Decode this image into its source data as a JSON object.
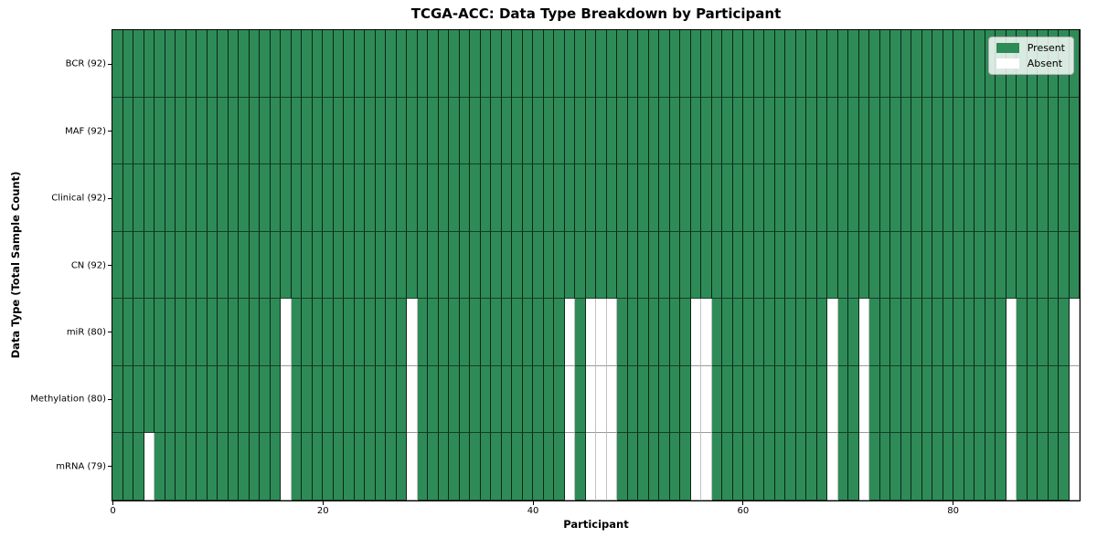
{
  "chart_data": {
    "type": "heatmap",
    "title": "TCGA-ACC: Data Type Breakdown by Participant",
    "xlabel": "Participant",
    "ylabel": "Data Type (Total Sample Count)",
    "x_ticks": [
      0,
      20,
      40,
      60,
      80
    ],
    "x_range": [
      0,
      92
    ],
    "n_participants": 92,
    "legend_position": "upper right",
    "colors": {
      "present": "#2e8b57",
      "absent": "#ffffff"
    },
    "rows": [
      {
        "label": "BCR (92)",
        "data_type": "BCR",
        "total": 92,
        "absent_participants": []
      },
      {
        "label": "MAF (92)",
        "data_type": "MAF",
        "total": 92,
        "absent_participants": []
      },
      {
        "label": "Clinical (92)",
        "data_type": "Clinical",
        "total": 92,
        "absent_participants": []
      },
      {
        "label": "CN (92)",
        "data_type": "CN",
        "total": 92,
        "absent_participants": []
      },
      {
        "label": "miR (80)",
        "data_type": "miR",
        "total": 80,
        "absent_participants": [
          16,
          28,
          43,
          45,
          46,
          47,
          55,
          56,
          68,
          71,
          85,
          91
        ]
      },
      {
        "label": "Methylation (80)",
        "data_type": "Methylation",
        "total": 80,
        "absent_participants": [
          16,
          28,
          43,
          45,
          46,
          47,
          55,
          56,
          68,
          71,
          85,
          91
        ]
      },
      {
        "label": "mRNA (79)",
        "data_type": "mRNA",
        "total": 79,
        "absent_participants": [
          3,
          16,
          28,
          43,
          45,
          46,
          47,
          55,
          56,
          68,
          71,
          85,
          91
        ]
      }
    ],
    "legend": [
      {
        "label": "Present",
        "color": "#2e8b57"
      },
      {
        "label": "Absent",
        "color": "#ffffff"
      }
    ]
  }
}
